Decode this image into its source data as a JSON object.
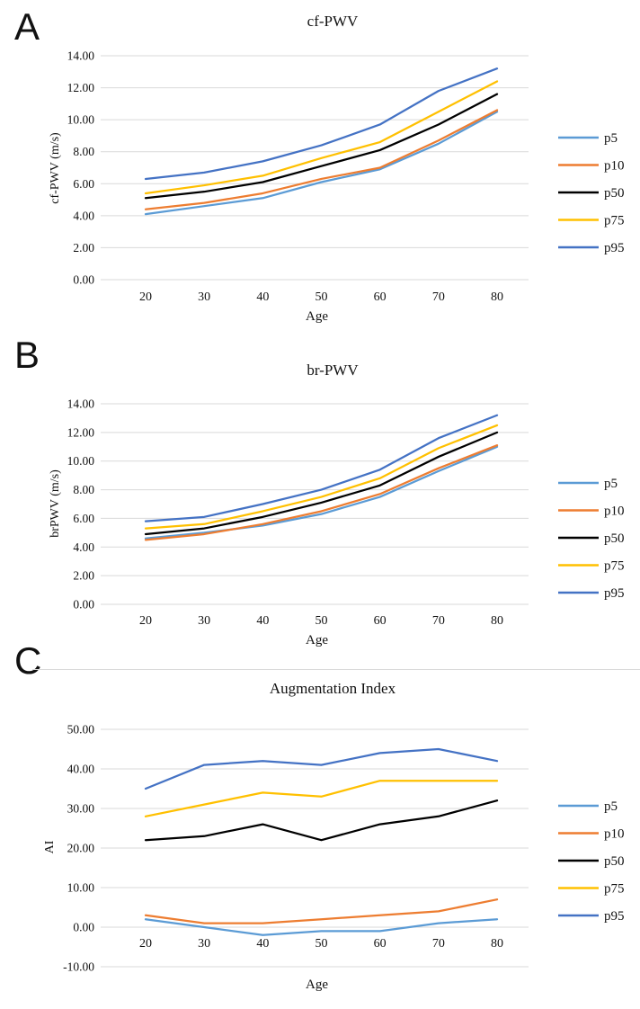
{
  "figure": {
    "panels": [
      {
        "letter": "A"
      },
      {
        "letter": "B"
      },
      {
        "letter": "C"
      }
    ]
  },
  "colors": {
    "p5": "#5B9BD5",
    "p10": "#ED7D31",
    "p50": "#000000",
    "p75": "#FFC000",
    "p95": "#4472C4",
    "gridline": "#D9D9D9",
    "text": "#111111"
  },
  "chart_data": [
    {
      "type": "line",
      "panel_letter": "A",
      "title": "cf-PWV",
      "xlabel": "Age",
      "ylabel": "cf-PWV (m/s)",
      "grid": true,
      "legend_position": "right",
      "ylim": [
        0,
        14
      ],
      "ytick_labels": [
        "14.00",
        "12.00",
        "10.00",
        "8.00",
        "6.00",
        "4.00",
        "2.00",
        "0.00"
      ],
      "ytick_values": [
        14,
        12,
        10,
        8,
        6,
        4,
        2,
        0
      ],
      "categories": [
        20,
        30,
        40,
        50,
        60,
        70,
        80
      ],
      "xtick_labels": [
        "20",
        "30",
        "40",
        "50",
        "60",
        "70",
        "80"
      ],
      "series": [
        {
          "name": "p5",
          "color_key": "p5",
          "values": [
            4.1,
            4.6,
            5.1,
            6.1,
            6.9,
            8.5,
            10.5
          ]
        },
        {
          "name": "p10",
          "color_key": "p10",
          "values": [
            4.4,
            4.8,
            5.4,
            6.3,
            7.0,
            8.7,
            10.6
          ]
        },
        {
          "name": "p50",
          "color_key": "p50",
          "values": [
            5.1,
            5.5,
            6.1,
            7.1,
            8.1,
            9.7,
            11.6
          ]
        },
        {
          "name": "p75",
          "color_key": "p75",
          "values": [
            5.4,
            5.9,
            6.5,
            7.6,
            8.6,
            10.5,
            12.4
          ]
        },
        {
          "name": "p95",
          "color_key": "p95",
          "values": [
            6.3,
            6.7,
            7.4,
            8.4,
            9.7,
            11.8,
            13.2
          ]
        }
      ],
      "legend": [
        "p5",
        "p10",
        "p50",
        "p75",
        "p95"
      ]
    },
    {
      "type": "line",
      "panel_letter": "B",
      "title": "br-PWV",
      "xlabel": "Age",
      "ylabel": "brPWV (m/s)",
      "grid": true,
      "legend_position": "right",
      "ylim": [
        0,
        14
      ],
      "ytick_labels": [
        "14.00",
        "12.00",
        "10.00",
        "8.00",
        "6.00",
        "4.00",
        "2.00",
        "0.00"
      ],
      "ytick_values": [
        14,
        12,
        10,
        8,
        6,
        4,
        2,
        0
      ],
      "categories": [
        20,
        30,
        40,
        50,
        60,
        70,
        80
      ],
      "xtick_labels": [
        "20",
        "30",
        "40",
        "50",
        "60",
        "70",
        "80"
      ],
      "series": [
        {
          "name": "p5",
          "color_key": "p5",
          "values": [
            4.6,
            5.0,
            5.5,
            6.3,
            7.5,
            9.3,
            11.0
          ]
        },
        {
          "name": "p10",
          "color_key": "p10",
          "values": [
            4.5,
            4.9,
            5.6,
            6.5,
            7.7,
            9.5,
            11.1
          ]
        },
        {
          "name": "p50",
          "color_key": "p50",
          "values": [
            4.9,
            5.3,
            6.1,
            7.1,
            8.3,
            10.3,
            12.0
          ]
        },
        {
          "name": "p75",
          "color_key": "p75",
          "values": [
            5.3,
            5.6,
            6.5,
            7.5,
            8.8,
            10.9,
            12.5
          ]
        },
        {
          "name": "p95",
          "color_key": "p95",
          "values": [
            5.8,
            6.1,
            7.0,
            8.0,
            9.4,
            11.6,
            13.2
          ]
        }
      ],
      "legend": [
        "p5",
        "p10",
        "p50",
        "p75",
        "p95"
      ]
    },
    {
      "type": "line",
      "panel_letter": "C",
      "title": "Augmentation Index",
      "xlabel": "Age",
      "ylabel": "AI",
      "grid": true,
      "legend_position": "right",
      "ylim": [
        -10,
        50
      ],
      "ytick_labels": [
        "50.00",
        "40.00",
        "30.00",
        "20.00",
        "10.00",
        "0.00",
        "-10.00"
      ],
      "ytick_values": [
        50,
        40,
        30,
        20,
        10,
        0,
        -10
      ],
      "categories": [
        20,
        30,
        40,
        50,
        60,
        70,
        80
      ],
      "xtick_labels": [
        "20",
        "30",
        "40",
        "50",
        "60",
        "70",
        "80"
      ],
      "series": [
        {
          "name": "p5",
          "color_key": "p5",
          "values": [
            2,
            0,
            -2,
            -1,
            -1,
            1,
            2
          ]
        },
        {
          "name": "p10",
          "color_key": "p10",
          "values": [
            3,
            1,
            1,
            2,
            3,
            4,
            7
          ]
        },
        {
          "name": "p50",
          "color_key": "p50",
          "values": [
            22,
            23,
            26,
            22,
            26,
            28,
            32
          ]
        },
        {
          "name": "p75",
          "color_key": "p75",
          "values": [
            28,
            31,
            34,
            33,
            37,
            37,
            37
          ]
        },
        {
          "name": "p95",
          "color_key": "p95",
          "values": [
            35,
            41,
            42,
            41,
            44,
            45,
            42
          ]
        }
      ],
      "legend": [
        "p5",
        "p10",
        "p50",
        "p75",
        "p95"
      ]
    }
  ]
}
